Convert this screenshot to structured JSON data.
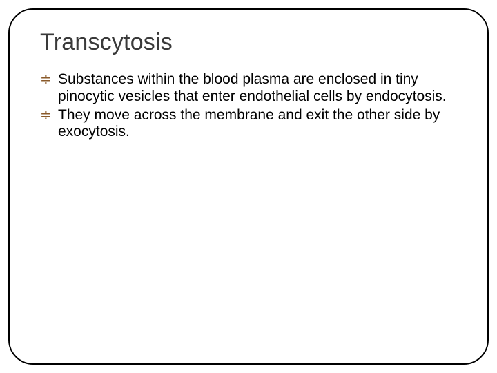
{
  "slide": {
    "title": "Transcytosis",
    "title_color": "#3a3a3a",
    "title_fontsize": 34,
    "border_color": "#000000",
    "border_radius": 36,
    "background_color": "#ffffff",
    "bullet_color": "#8a5a2a",
    "bullet_glyph": "≑",
    "body_fontsize": 21,
    "body_color": "#000000",
    "bullets": [
      {
        "text": "Substances within the blood plasma are enclosed in tiny pinocytic vesicles that enter endothelial cells by endocytosis."
      },
      {
        "text": "They move across the membrane and exit the other side by exocytosis."
      }
    ]
  }
}
